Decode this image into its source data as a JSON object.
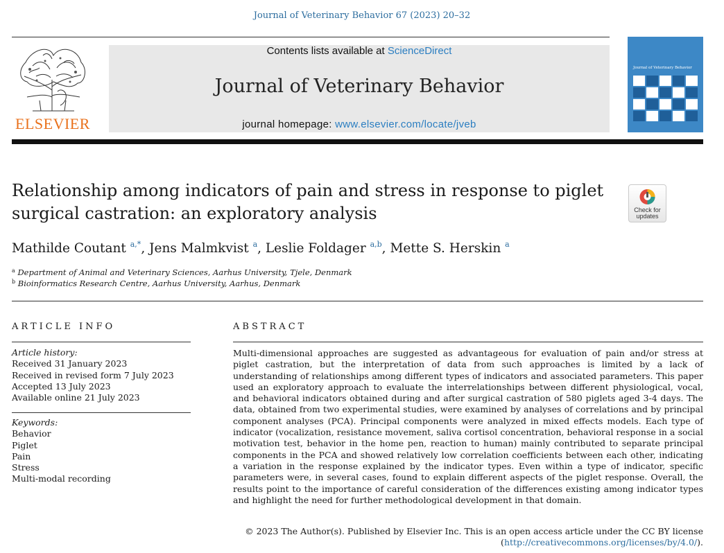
{
  "header": {
    "citation": "Journal of Veterinary Behavior 67 (2023) 20–32",
    "publisher_logo_text": "ELSEVIER",
    "contents_prefix": "Contents lists available at ",
    "contents_link": "ScienceDirect",
    "journal_title": "Journal of Veterinary Behavior",
    "homepage_prefix": "journal homepage: ",
    "homepage_url": "www.elsevier.com/locate/jveb",
    "cover_title": "Journal of Veterinary Behavior"
  },
  "badge": {
    "label_line1": "Check for",
    "label_line2": "updates"
  },
  "article": {
    "title": "Relationship among indicators of pain and stress in response to piglet surgical castration: an exploratory analysis",
    "authors": [
      {
        "name": "Mathilde Coutant",
        "sup": "a,*",
        "sep": ", "
      },
      {
        "name": "Jens Malmkvist",
        "sup": "a",
        "sep": ", "
      },
      {
        "name": "Leslie Foldager",
        "sup": "a,b",
        "sep": ", "
      },
      {
        "name": "Mette S. Herskin",
        "sup": "a",
        "sep": ""
      }
    ],
    "affiliations": [
      {
        "mark": "a",
        "text": "Department of Animal and Veterinary Sciences, Aarhus University, Tjele, Denmark"
      },
      {
        "mark": "b",
        "text": "Bioinformatics Research Centre, Aarhus University, Aarhus, Denmark"
      }
    ]
  },
  "article_info": {
    "heading": "ARTICLE INFO",
    "history_label": "Article history:",
    "history": [
      "Received 31 January 2023",
      "Received in revised form 7 July 2023",
      "Accepted 13 July 2023",
      "Available online 21 July 2023"
    ],
    "keywords_label": "Keywords:",
    "keywords": [
      "Behavior",
      "Piglet",
      "Pain",
      "Stress",
      "Multi-modal recording"
    ]
  },
  "abstract": {
    "heading": "ABSTRACT",
    "text": "Multi-dimensional approaches are suggested as advantageous for evaluation of pain and/or stress at piglet castration, but the interpretation of data from such approaches is limited by a lack of understanding of relationships among different types of indicators and associated parameters. This paper used an exploratory approach to evaluate the interrelationships between different physiological, vocal, and behavioral indicators obtained during and after surgical castration of 580 piglets aged 3-4 days. The data, obtained from two experimental studies, were examined by analyses of correlations and by principal component analyses (PCA). Principal components were analyzed in mixed effects models. Each type of indicator (vocalization, resistance movement, saliva cortisol concentration, behavioral response in a social motivation test, behavior in the home pen, reaction to human) mainly contributed to separate principal components in the PCA and showed relatively low correlation coefficients between each other, indicating a variation in the response explained by the indicator types. Even within a type of indicator, specific parameters were, in several cases, found to explain different aspects of the piglet response. Overall, the results point to the importance of careful consideration of the differences existing among indicator types and highlight the need for further methodological development in that domain.",
    "copyright": "© 2023 The Author(s). Published by Elsevier Inc. This is an open access article under the CC BY license",
    "license_open": "(",
    "license_url": "http://creativecommons.org/licenses/by/4.0/",
    "license_close": ")."
  }
}
